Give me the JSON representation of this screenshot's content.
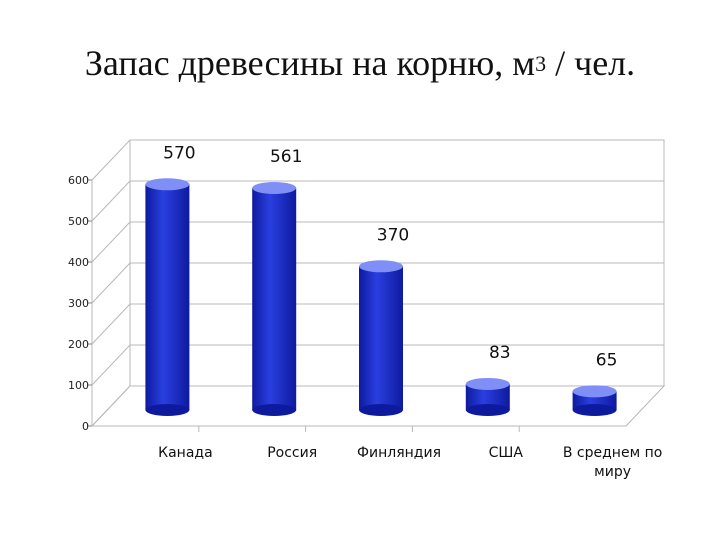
{
  "chart_data": {
    "type": "bar",
    "title_main": "Запас древесины на корню, м",
    "title_sup": "3",
    "title_tail": " / чел.",
    "categories": [
      "Канада",
      "Россия",
      "Финляндия",
      "США",
      "В среднем по миру"
    ],
    "values": [
      570,
      561,
      370,
      83,
      65
    ],
    "data_labels": [
      "570",
      "561",
      "370",
      "83",
      "65"
    ],
    "ylim": [
      0,
      600
    ],
    "y_ticks": [
      0,
      100,
      200,
      300,
      400,
      500,
      600
    ],
    "grid": true,
    "bar_color": "#2a3fe0",
    "bar_highlight": "#7f8ff6",
    "bar_shadow": "#0e1a9e"
  }
}
